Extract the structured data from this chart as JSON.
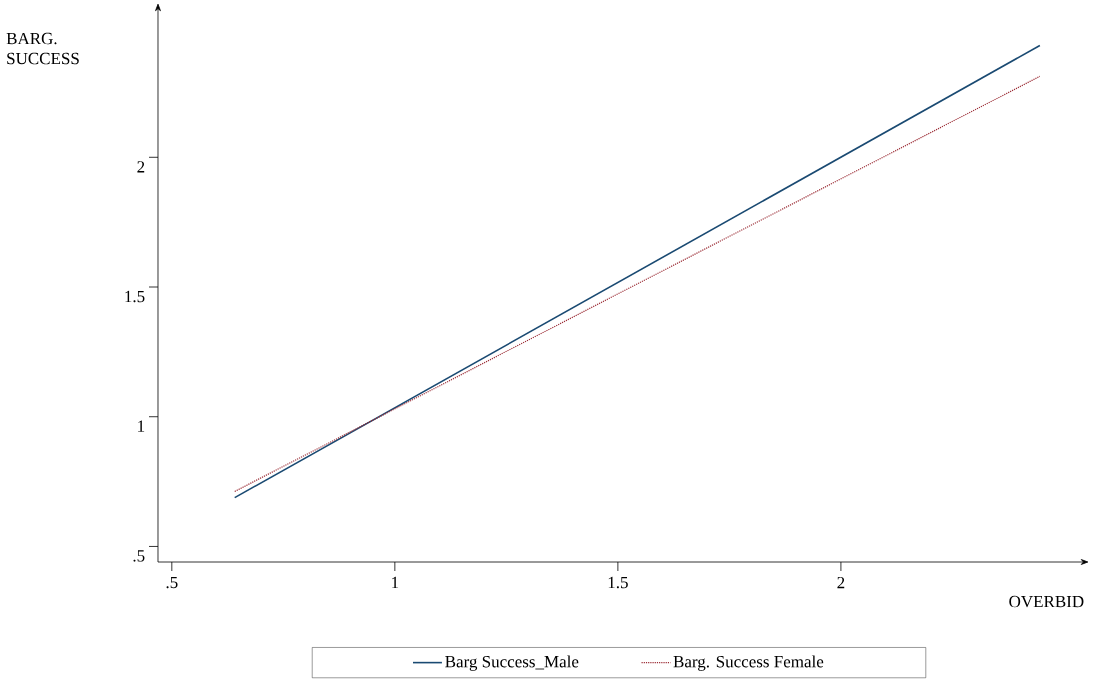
{
  "chart_data": {
    "type": "line",
    "xlabel": "OVERBID",
    "ylabel": "BARG. SUCCESS",
    "xlim": [
      0.469,
      2.536
    ],
    "ylim": [
      0.44,
      2.56
    ],
    "xticks": [
      {
        "value": 0.5,
        "label": ".5"
      },
      1,
      1.5,
      2
    ],
    "yticks": [
      {
        "value": 0.5,
        "label": ".5"
      },
      1,
      1.5,
      2
    ],
    "grid": false,
    "legend": "bottom",
    "x": [
      0.641,
      2.446
    ],
    "series": [
      {
        "name": "Barg Success_Male",
        "color": "#1a4a72",
        "line_style": "solid",
        "values": [
          0.688,
          2.431
        ]
      },
      {
        "name": "Barg. Success Female",
        "color": "#9b2c35",
        "line_style": "dotted",
        "values": [
          0.712,
          2.312
        ]
      }
    ]
  }
}
